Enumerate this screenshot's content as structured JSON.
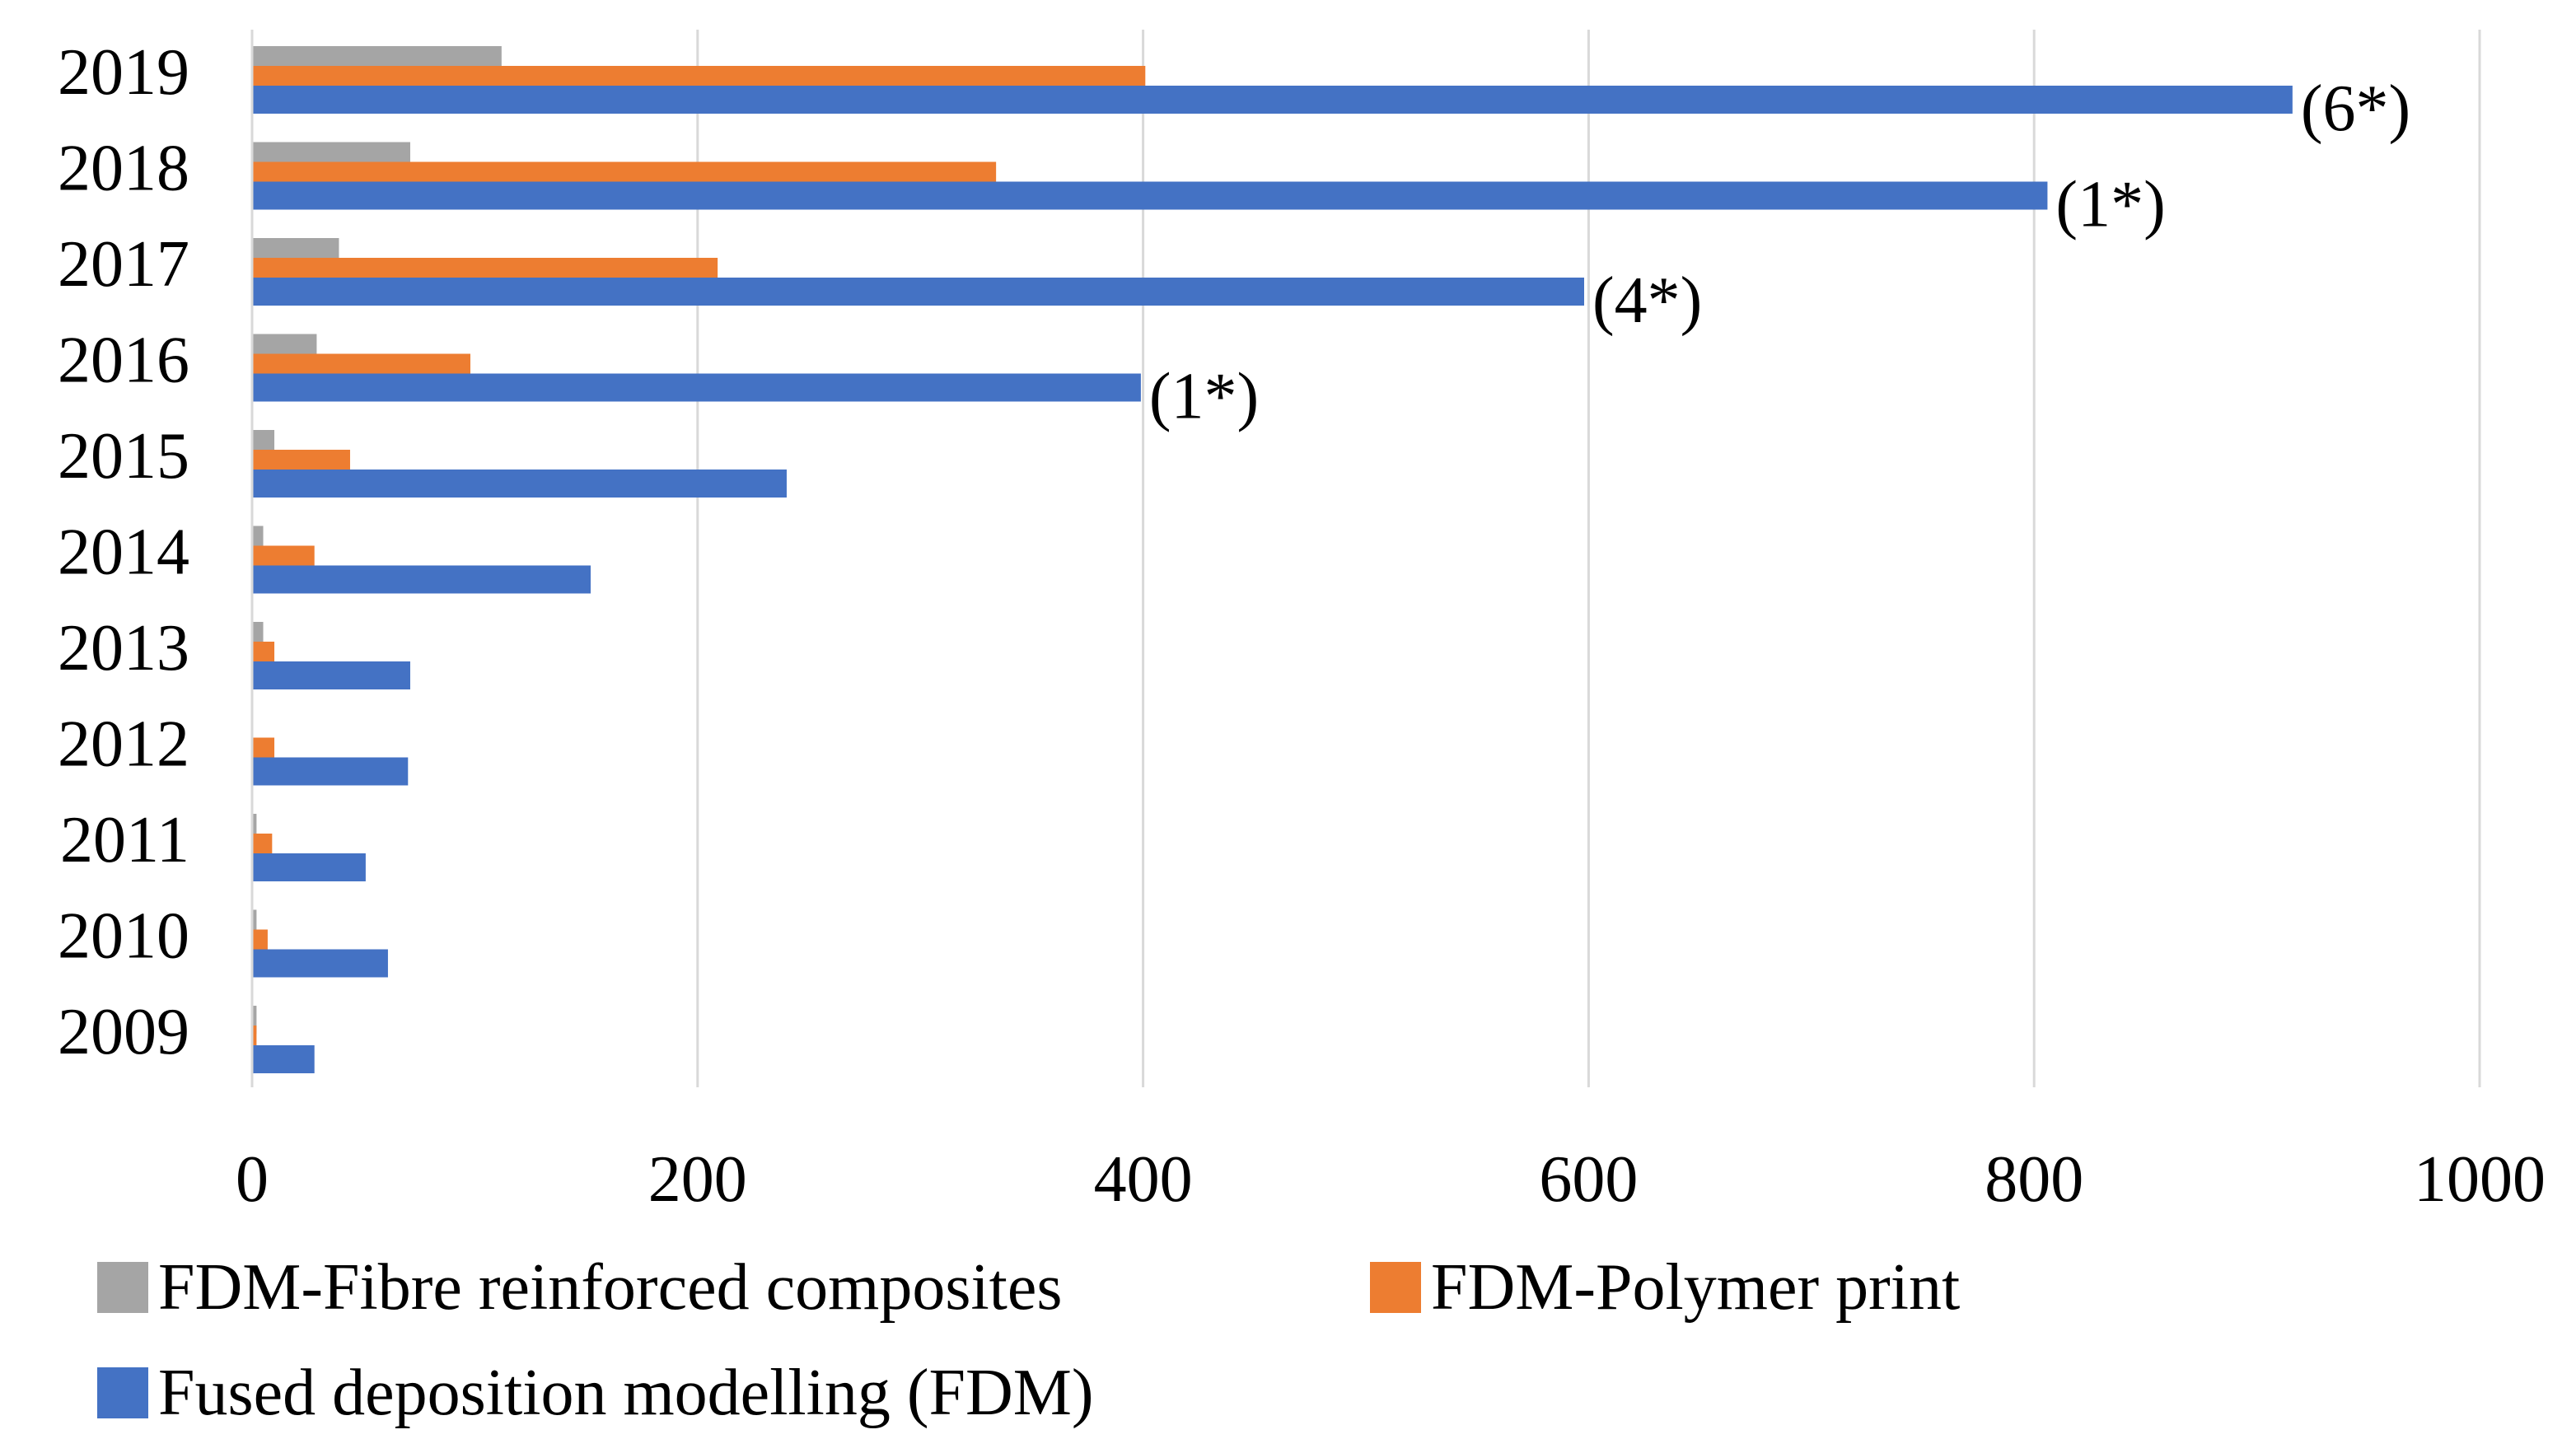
{
  "chart_data": {
    "type": "bar",
    "orientation": "horizontal",
    "title": "",
    "xlabel": "",
    "ylabel": "",
    "xlim": [
      0,
      1000
    ],
    "x_ticks": [
      0,
      200,
      400,
      600,
      800,
      1000
    ],
    "grid": true,
    "legend_position": "bottom",
    "categories": [
      "2019",
      "2018",
      "2017",
      "2016",
      "2015",
      "2014",
      "2013",
      "2012",
      "2011",
      "2010",
      "2009"
    ],
    "series": [
      {
        "name": "FDM-Fibre reinforced composites",
        "color": "#a5a5a5",
        "values": [
          112,
          71,
          39,
          29,
          10,
          5,
          5,
          0,
          2,
          2,
          2
        ]
      },
      {
        "name": "FDM-Polymer print",
        "color": "#ed7d31",
        "values": [
          401,
          334,
          209,
          98,
          44,
          28,
          10,
          10,
          9,
          7,
          2
        ]
      },
      {
        "name": "Fused deposition modelling (FDM)",
        "color": "#4472c4",
        "values": [
          916,
          806,
          598,
          399,
          240,
          152,
          71,
          70,
          51,
          61,
          28
        ]
      }
    ],
    "annotations": [
      {
        "category": "2019",
        "series": "Fused deposition modelling (FDM)",
        "text": "(6*)"
      },
      {
        "category": "2018",
        "series": "Fused deposition modelling (FDM)",
        "text": "(1*)"
      },
      {
        "category": "2017",
        "series": "Fused deposition modelling (FDM)",
        "text": "(4*)"
      },
      {
        "category": "2016",
        "series": "Fused deposition modelling (FDM)",
        "text": "(1*)"
      }
    ],
    "gridline_color": "#d9d9d9"
  },
  "legend": {
    "items": [
      {
        "label": "FDM-Fibre reinforced composites",
        "color": "#a5a5a5"
      },
      {
        "label": "FDM-Polymer print",
        "color": "#ed7d31"
      },
      {
        "label": "Fused deposition modelling (FDM)",
        "color": "#4472c4"
      }
    ]
  }
}
